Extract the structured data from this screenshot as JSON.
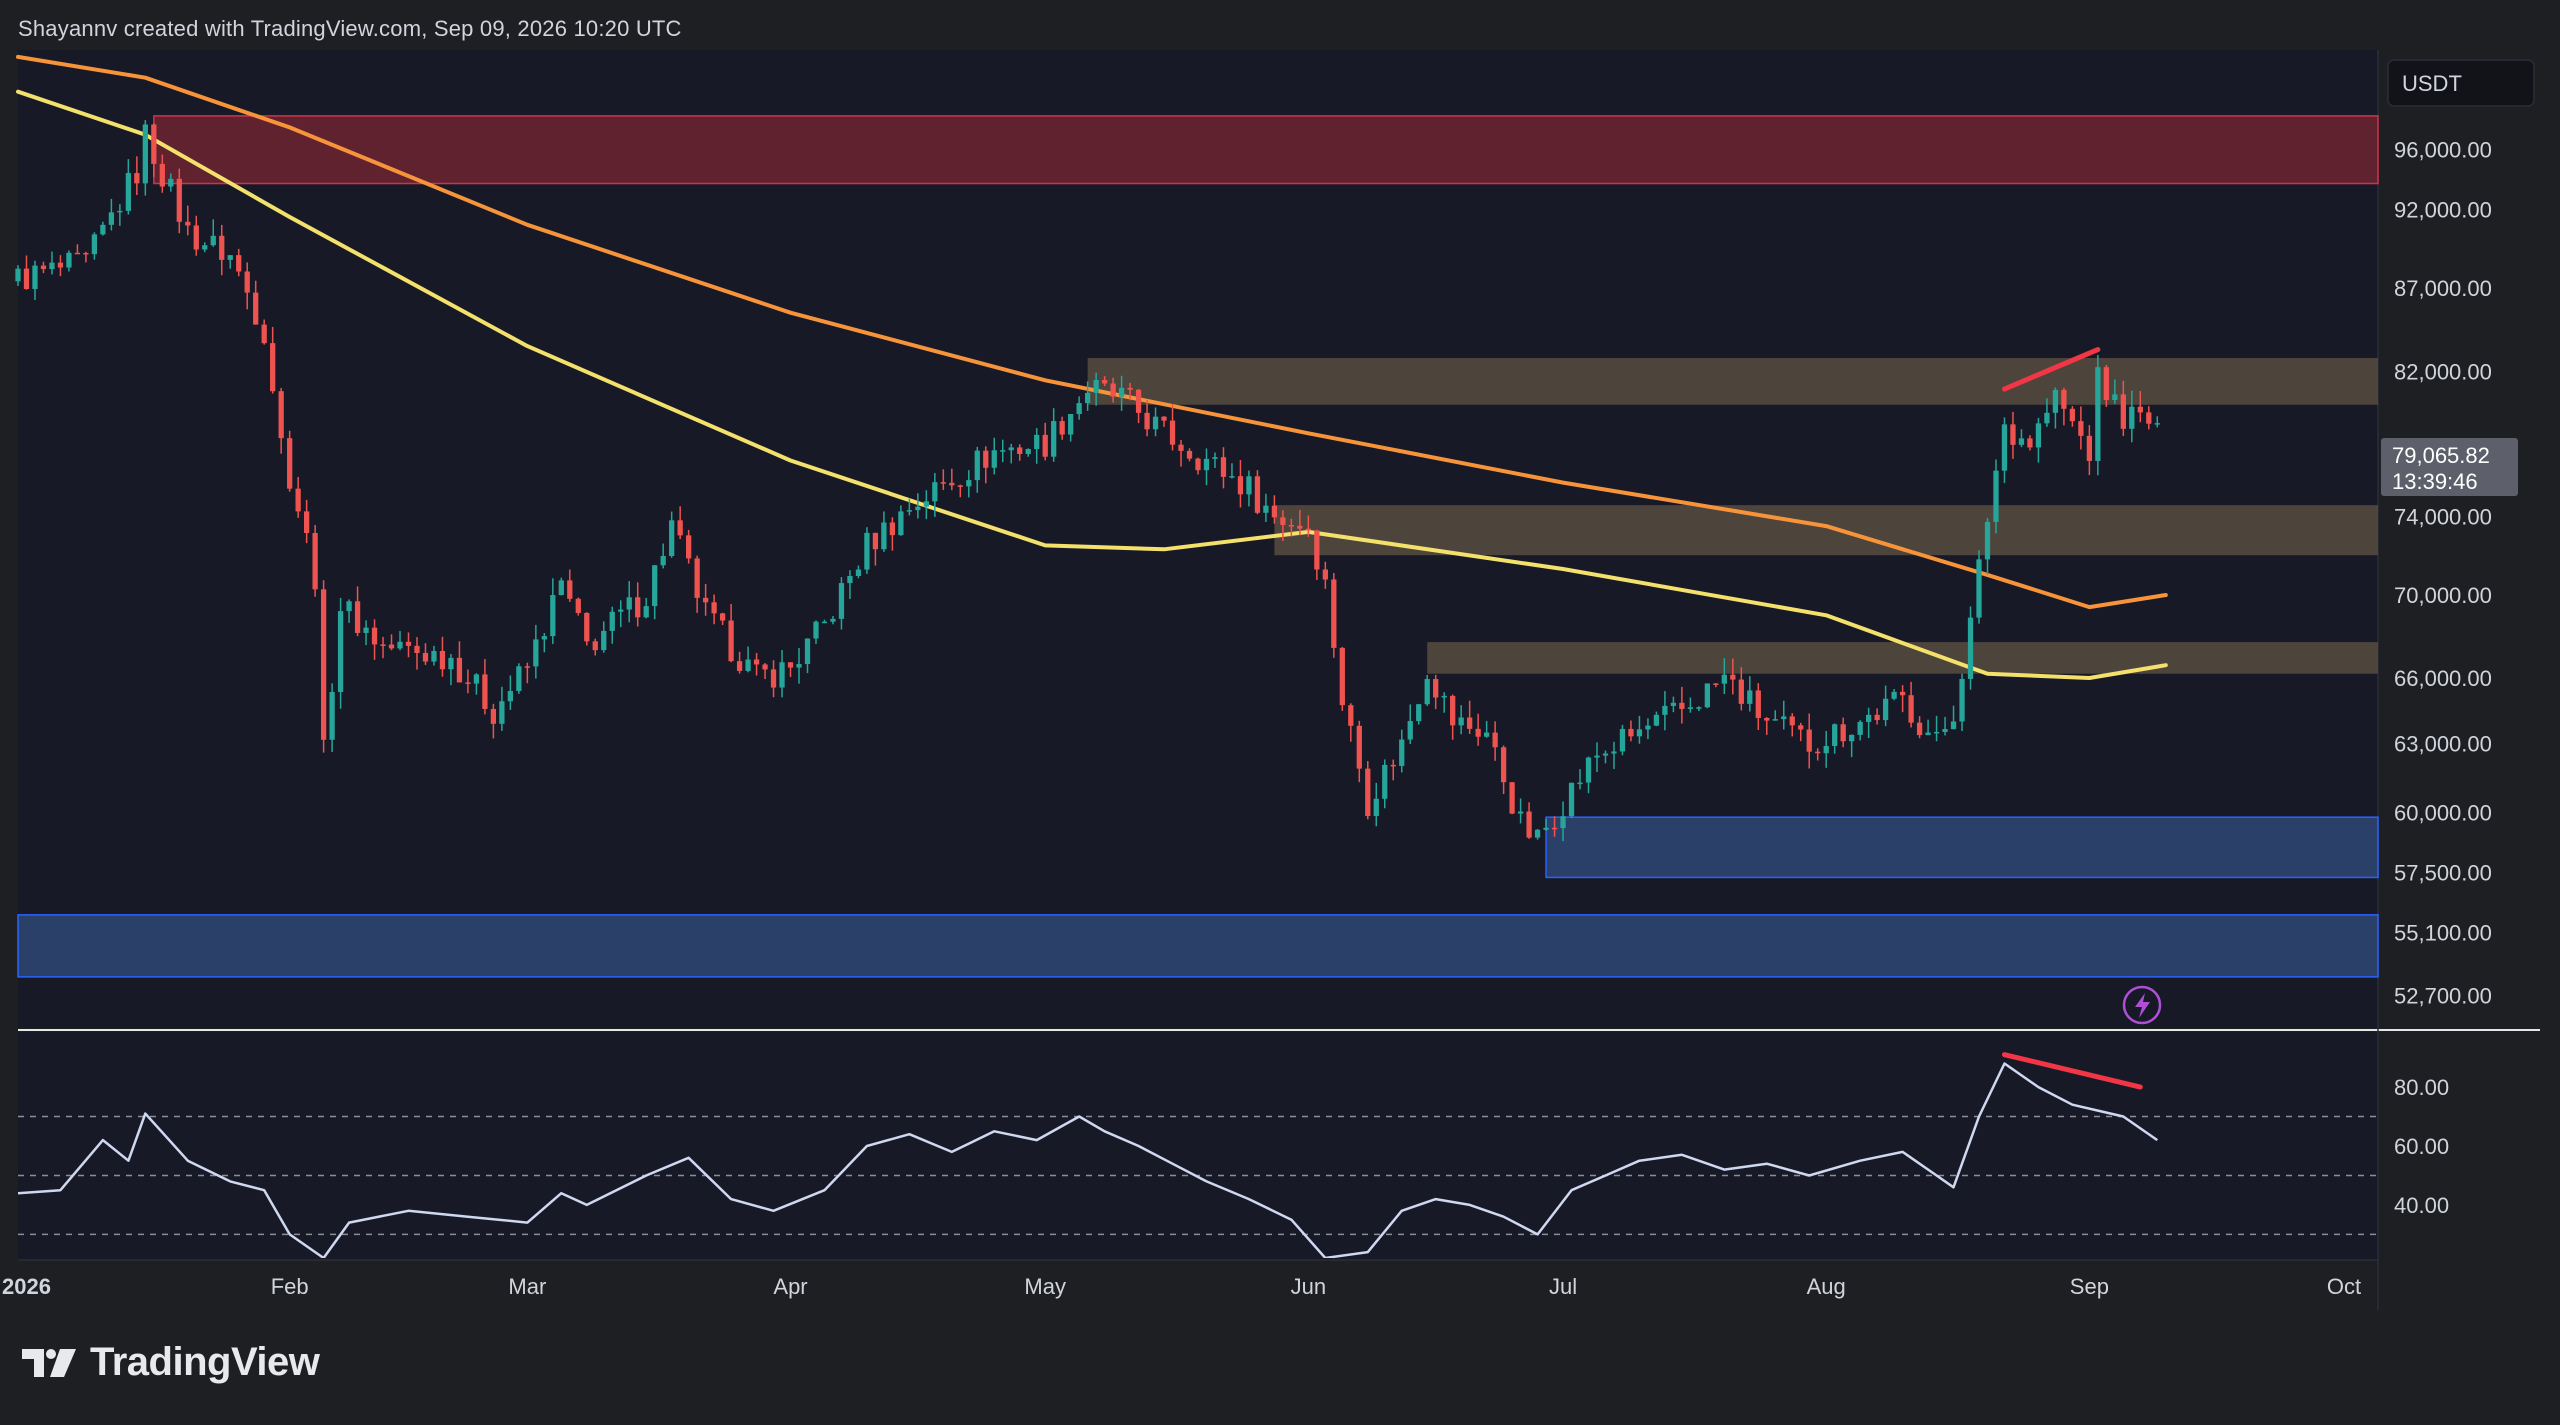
{
  "attribution": "Shayannv created with TradingView.com, Sep 09, 2026 10:20 UTC",
  "brand": "TradingView",
  "currency_badge": "USDT",
  "price_badge": {
    "price": "79,065.82",
    "countdown": "13:39:46"
  },
  "colors": {
    "background": "#1e1f23",
    "plot_background": "#171a26",
    "up_candle": "#26a69a",
    "down_candle": "#ef5350",
    "ema_200": "#f7943a",
    "ema_100": "#f3e16b",
    "supply_zone": "#6f2533",
    "flip_zone": "#5c5142",
    "demand_zone": "#2e4570",
    "divergence_line": "#f23645",
    "rsi_line": "#cfd8f0"
  },
  "indicator_icon": "lightning-icon",
  "chart_data": [
    {
      "type": "candlestick",
      "title": "",
      "timeframe": "1D",
      "y_axis": {
        "scale": "log",
        "range": [
          51500,
          103000
        ],
        "tick_labels": [
          "96,000.00",
          "92,000.00",
          "87,000.00",
          "82,000.00",
          "74,000.00",
          "70,000.00",
          "66,000.00",
          "63,000.00",
          "60,000.00",
          "57,500.00",
          "55,100.00",
          "52,700.00"
        ],
        "tick_values": [
          96000,
          92000,
          87000,
          82000,
          74000,
          70000,
          66000,
          63000,
          60000,
          57500,
          55100,
          52700
        ]
      },
      "x_axis": {
        "range": [
          "2025-12-31",
          "2026-10-05"
        ],
        "tick_labels": [
          "2026",
          "Feb",
          "Mar",
          "Apr",
          "May",
          "Jun",
          "Jul",
          "Aug",
          "Sep",
          "Oct"
        ],
        "tick_dates": [
          "2026-01-01",
          "2026-02-01",
          "2026-03-01",
          "2026-04-01",
          "2026-05-01",
          "2026-06-01",
          "2026-07-01",
          "2026-08-01",
          "2026-09-01",
          "2026-10-01"
        ]
      },
      "close_path": [
        [
          "2025-12-31",
          87600
        ],
        [
          "2026-01-08",
          88500
        ],
        [
          "2026-01-14",
          94500
        ],
        [
          "2026-01-15",
          97000
        ],
        [
          "2026-01-20",
          90500
        ],
        [
          "2026-01-25",
          89000
        ],
        [
          "2026-01-29",
          84500
        ],
        [
          "2026-01-31",
          78000
        ],
        [
          "2026-02-04",
          71000
        ],
        [
          "2026-02-05",
          62500
        ],
        [
          "2026-02-07",
          69500
        ],
        [
          "2026-02-12",
          67500
        ],
        [
          "2026-02-20",
          67000
        ],
        [
          "2026-02-25",
          64500
        ],
        [
          "2026-03-01",
          66500
        ],
        [
          "2026-03-05",
          70500
        ],
        [
          "2026-03-08",
          67500
        ],
        [
          "2026-03-15",
          70000
        ],
        [
          "2026-03-18",
          73500
        ],
        [
          "2026-03-22",
          69000
        ],
        [
          "2026-03-28",
          66000
        ],
        [
          "2026-04-01",
          66500
        ],
        [
          "2026-04-05",
          68500
        ],
        [
          "2026-04-10",
          72500
        ],
        [
          "2026-04-15",
          74500
        ],
        [
          "2026-04-20",
          76000
        ],
        [
          "2026-04-25",
          77500
        ],
        [
          "2026-05-01",
          78000
        ],
        [
          "2026-05-06",
          81000
        ],
        [
          "2026-05-10",
          80500
        ],
        [
          "2026-05-15",
          78500
        ],
        [
          "2026-05-20",
          77000
        ],
        [
          "2026-05-25",
          75500
        ],
        [
          "2026-05-28",
          74000
        ],
        [
          "2026-06-01",
          73500
        ],
        [
          "2026-06-03",
          70500
        ],
        [
          "2026-06-05",
          65000
        ],
        [
          "2026-06-08",
          60500
        ],
        [
          "2026-06-12",
          63000
        ],
        [
          "2026-06-15",
          66500
        ],
        [
          "2026-06-18",
          64000
        ],
        [
          "2026-06-22",
          63500
        ],
        [
          "2026-06-26",
          59500
        ],
        [
          "2026-06-28",
          58800
        ],
        [
          "2026-07-01",
          60500
        ],
        [
          "2026-07-05",
          62500
        ],
        [
          "2026-07-10",
          63500
        ],
        [
          "2026-07-15",
          64500
        ],
        [
          "2026-07-20",
          66000
        ],
        [
          "2026-07-25",
          64000
        ],
        [
          "2026-07-30",
          63000
        ],
        [
          "2026-08-05",
          64000
        ],
        [
          "2026-08-10",
          65000
        ],
        [
          "2026-08-14",
          63000
        ],
        [
          "2026-08-16",
          64500
        ],
        [
          "2026-08-18",
          68500
        ],
        [
          "2026-08-20",
          74000
        ],
        [
          "2026-08-22",
          79000
        ],
        [
          "2026-08-25",
          78000
        ],
        [
          "2026-08-28",
          80500
        ],
        [
          "2026-09-01",
          77500
        ],
        [
          "2026-09-02",
          81500
        ],
        [
          "2026-09-05",
          79500
        ],
        [
          "2026-09-09",
          79066
        ]
      ],
      "series": [
        {
          "name": "",
          "color": "#f7943a",
          "points": [
            [
              "2025-12-31",
              102500
            ],
            [
              "2026-01-15",
              101000
            ],
            [
              "2026-02-01",
              97500
            ],
            [
              "2026-03-01",
              91000
            ],
            [
              "2026-04-01",
              85500
            ],
            [
              "2026-05-01",
              81500
            ],
            [
              "2026-06-01",
              78500
            ],
            [
              "2026-07-01",
              75800
            ],
            [
              "2026-08-01",
              73500
            ],
            [
              "2026-08-20",
              71000
            ],
            [
              "2026-09-01",
              69400
            ],
            [
              "2026-09-10",
              70000
            ]
          ]
        },
        {
          "name": "",
          "color": "#f3e16b",
          "points": [
            [
              "2025-12-31",
              100000
            ],
            [
              "2026-01-15",
              97000
            ],
            [
              "2026-02-01",
              91500
            ],
            [
              "2026-03-01",
              83500
            ],
            [
              "2026-04-01",
              77000
            ],
            [
              "2026-05-01",
              72500
            ],
            [
              "2026-05-15",
              72300
            ],
            [
              "2026-06-01",
              73200
            ],
            [
              "2026-07-01",
              71300
            ],
            [
              "2026-08-01",
              69000
            ],
            [
              "2026-08-20",
              66200
            ],
            [
              "2026-09-01",
              66000
            ],
            [
              "2026-09-10",
              66600
            ]
          ]
        }
      ],
      "zones": [
        {
          "kind": "supply",
          "low": 93700,
          "high": 98300,
          "from": "2026-01-16",
          "to": "2026-10-05"
        },
        {
          "kind": "resistance",
          "low": 80100,
          "high": 82800,
          "from": "2026-05-06",
          "to": "2026-10-05"
        },
        {
          "kind": "flip",
          "low": 72000,
          "high": 74600,
          "from": "2026-05-28",
          "to": "2026-10-05"
        },
        {
          "kind": "flip",
          "low": 66200,
          "high": 67700,
          "from": "2026-06-15",
          "to": "2026-10-05"
        },
        {
          "kind": "demand",
          "low": 57300,
          "high": 59800,
          "from": "2026-06-29",
          "to": "2026-10-05"
        },
        {
          "kind": "demand",
          "low": 53400,
          "high": 55800,
          "from": "2025-12-31",
          "to": "2026-10-05"
        }
      ],
      "divergence": {
        "from": [
          "2026-08-22",
          81000
        ],
        "to": [
          "2026-09-02",
          83300
        ]
      }
    },
    {
      "type": "line",
      "title": "",
      "y_axis": {
        "range": [
          22,
          98
        ],
        "tick_labels": [
          "80.00",
          "60.00",
          "40.00"
        ],
        "tick_values": [
          80,
          60,
          40
        ],
        "dashed_levels": [
          70,
          50,
          30
        ]
      },
      "series": [
        {
          "name": "",
          "color": "#cfd8f0",
          "points": [
            [
              "2025-12-31",
              44
            ],
            [
              "2026-01-05",
              45
            ],
            [
              "2026-01-10",
              62
            ],
            [
              "2026-01-13",
              55
            ],
            [
              "2026-01-15",
              71
            ],
            [
              "2026-01-20",
              55
            ],
            [
              "2026-01-25",
              48
            ],
            [
              "2026-01-29",
              45
            ],
            [
              "2026-02-01",
              30
            ],
            [
              "2026-02-05",
              22
            ],
            [
              "2026-02-08",
              34
            ],
            [
              "2026-02-15",
              38
            ],
            [
              "2026-02-22",
              36
            ],
            [
              "2026-03-01",
              34
            ],
            [
              "2026-03-05",
              44
            ],
            [
              "2026-03-08",
              40
            ],
            [
              "2026-03-15",
              50
            ],
            [
              "2026-03-20",
              56
            ],
            [
              "2026-03-25",
              42
            ],
            [
              "2026-03-30",
              38
            ],
            [
              "2026-04-05",
              45
            ],
            [
              "2026-04-10",
              60
            ],
            [
              "2026-04-15",
              64
            ],
            [
              "2026-04-20",
              58
            ],
            [
              "2026-04-25",
              65
            ],
            [
              "2026-04-30",
              62
            ],
            [
              "2026-05-05",
              70
            ],
            [
              "2026-05-08",
              65
            ],
            [
              "2026-05-12",
              60
            ],
            [
              "2026-05-16",
              54
            ],
            [
              "2026-05-20",
              48
            ],
            [
              "2026-05-25",
              42
            ],
            [
              "2026-05-30",
              35
            ],
            [
              "2026-06-03",
              22
            ],
            [
              "2026-06-08",
              24
            ],
            [
              "2026-06-12",
              38
            ],
            [
              "2026-06-16",
              42
            ],
            [
              "2026-06-20",
              40
            ],
            [
              "2026-06-24",
              36
            ],
            [
              "2026-06-28",
              30
            ],
            [
              "2026-07-02",
              45
            ],
            [
              "2026-07-06",
              50
            ],
            [
              "2026-07-10",
              55
            ],
            [
              "2026-07-15",
              57
            ],
            [
              "2026-07-20",
              52
            ],
            [
              "2026-07-25",
              54
            ],
            [
              "2026-07-30",
              50
            ],
            [
              "2026-08-05",
              55
            ],
            [
              "2026-08-10",
              58
            ],
            [
              "2026-08-14",
              50
            ],
            [
              "2026-08-16",
              46
            ],
            [
              "2026-08-19",
              70
            ],
            [
              "2026-08-22",
              88
            ],
            [
              "2026-08-26",
              80
            ],
            [
              "2026-08-30",
              74
            ],
            [
              "2026-09-02",
              72
            ],
            [
              "2026-09-05",
              70
            ],
            [
              "2026-09-09",
              62
            ]
          ]
        }
      ],
      "divergence": {
        "from": [
          "2026-08-22",
          91
        ],
        "to": [
          "2026-09-07",
          80
        ]
      }
    }
  ]
}
